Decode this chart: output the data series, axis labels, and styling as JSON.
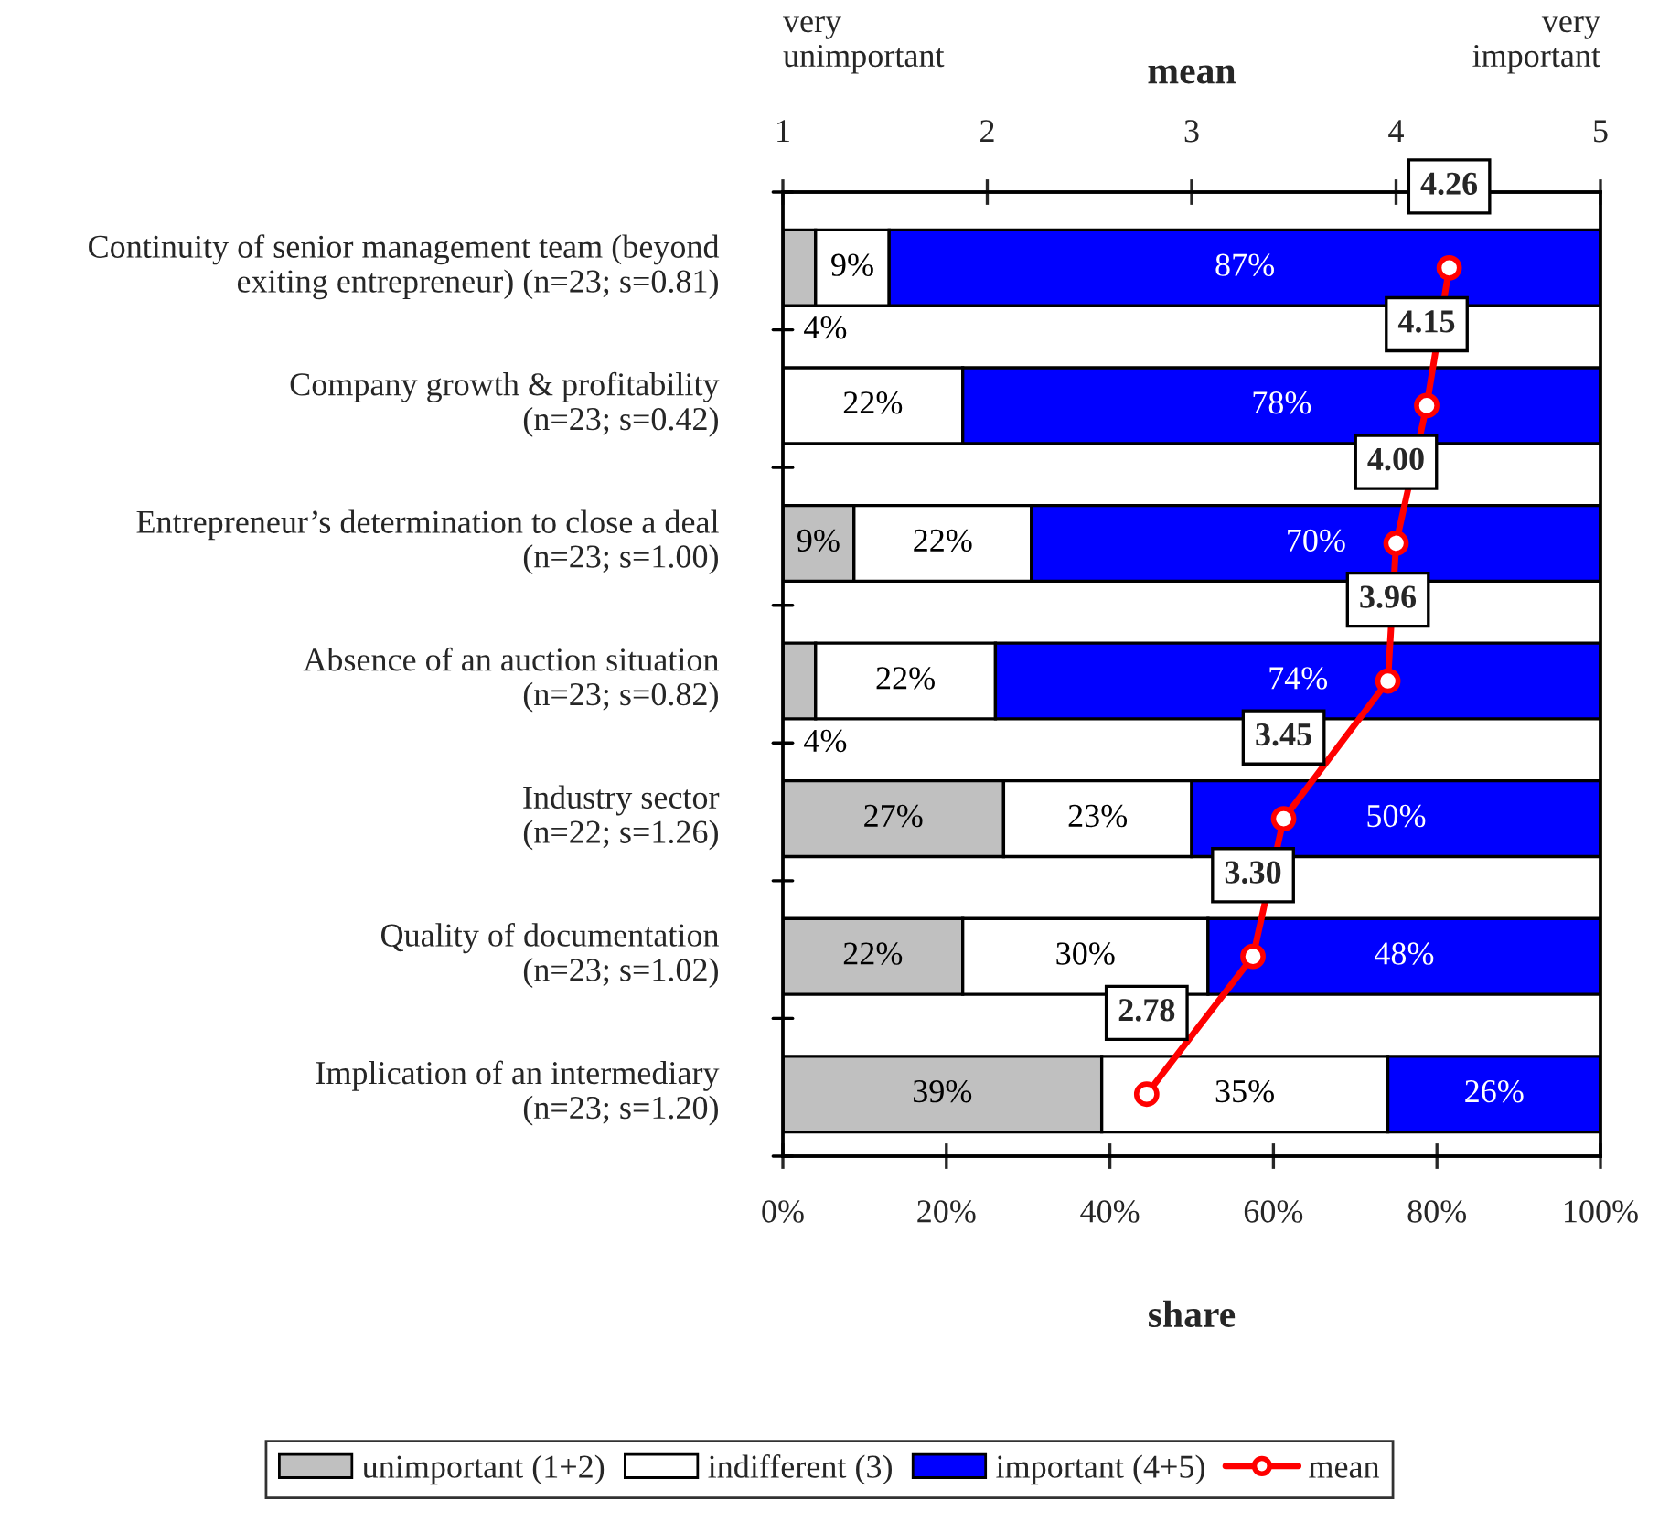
{
  "chart_data": {
    "type": "bar",
    "orientation": "horizontal",
    "stacked": true,
    "categories": [
      "Continuity of senior management team (beyond\nexiting entrepreneur) (n=23; s=0.81)",
      "Company growth & profitability\n(n=23; s=0.42)",
      "Entrepreneur’s determination to close a deal\n(n=23; s=1.00)",
      "Absence of an auction situation\n(n=23; s=0.82)",
      "Industry sector\n(n=22; s=1.26)",
      "Quality of documentation\n(n=23; s=1.02)",
      "Implication of an intermediary\n(n=23; s=1.20)"
    ],
    "series": [
      {
        "name": "unimportant (1+2)",
        "color": "#c0c0c0",
        "values": [
          4,
          0,
          8.7,
          4,
          27,
          22,
          39
        ],
        "value_labels": [
          "4%",
          null,
          "9%",
          "4%",
          "27%",
          "22%",
          "39%"
        ]
      },
      {
        "name": "indifferent (3)",
        "color": "#ffffff",
        "values": [
          9,
          22,
          21.7,
          22,
          23,
          30,
          35
        ],
        "value_labels": [
          "9%",
          "22%",
          "22%",
          "22%",
          "23%",
          "30%",
          "35%"
        ]
      },
      {
        "name": "important (4+5)",
        "color": "#0000ff",
        "values": [
          87,
          78,
          69.6,
          74,
          50,
          48,
          26
        ],
        "value_labels": [
          "87%",
          "78%",
          "70%",
          "74%",
          "50%",
          "48%",
          "26%"
        ]
      },
      {
        "name": "mean",
        "type": "line",
        "axis": "x2",
        "color": "#ff0000",
        "marker": "circle",
        "line_style": "solid",
        "values": [
          4.26,
          4.15,
          4.0,
          3.96,
          3.45,
          3.3,
          2.78
        ],
        "value_labels": [
          "4.26",
          "4.15",
          "4.00",
          "3.96",
          "3.45",
          "3.30",
          "2.78"
        ]
      }
    ],
    "xlim": [
      0,
      100
    ],
    "xticks": [
      {
        "value": 0,
        "label": "0%"
      },
      {
        "value": 20,
        "label": "20%"
      },
      {
        "value": 40,
        "label": "40%"
      },
      {
        "value": 60,
        "label": "60%"
      },
      {
        "value": 80,
        "label": "80%"
      },
      {
        "value": 100,
        "label": "100%"
      }
    ],
    "x2lim": [
      1,
      5
    ],
    "x2ticks": [
      1,
      2,
      3,
      4,
      5
    ],
    "xlabel": "share",
    "x2label": "mean",
    "annotations": [
      "very\nunimportant",
      "very\nimportant"
    ],
    "legend": "bottom",
    "grid": false
  }
}
